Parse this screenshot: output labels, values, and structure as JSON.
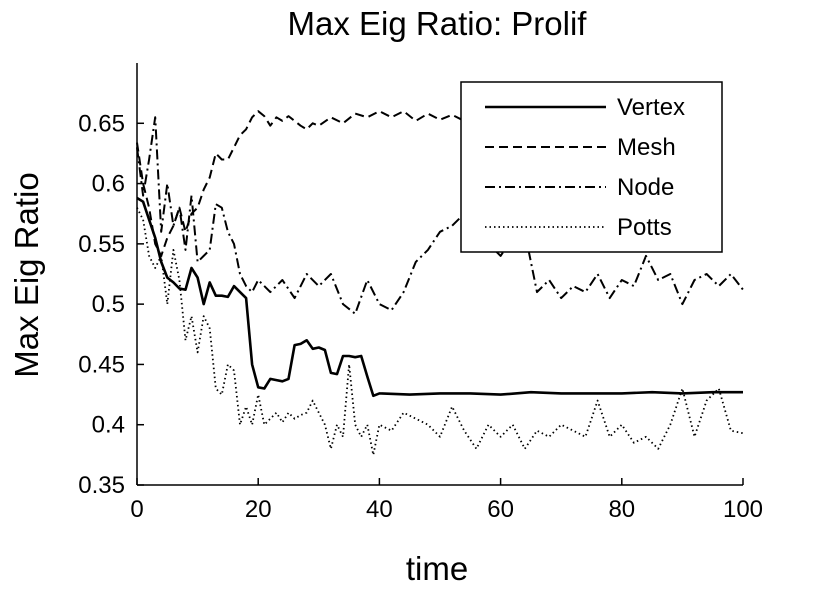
{
  "chart_data": {
    "type": "line",
    "title": "Max Eig Ratio: Prolif",
    "xlabel": "time",
    "ylabel": "Max Eig Ratio",
    "xlim": [
      0,
      100
    ],
    "ylim": [
      0.35,
      0.7
    ],
    "xticks": [
      0,
      20,
      40,
      60,
      80,
      100
    ],
    "xtick_labels": [
      "0",
      "20",
      "40",
      "60",
      "80",
      "100"
    ],
    "yticks": [
      0.35,
      0.4,
      0.45,
      0.5,
      0.55,
      0.6,
      0.65
    ],
    "ytick_labels": [
      "0.35",
      "0.4",
      "0.45",
      "0.5",
      "0.55",
      "0.6",
      "0.65"
    ],
    "grid": false,
    "legend_position": "top-right",
    "series": [
      {
        "name": "Vertex",
        "style": "solid",
        "x": [
          0,
          1,
          2,
          3,
          4,
          5,
          6,
          7,
          8,
          9,
          10,
          11,
          12,
          13,
          14,
          15,
          16,
          17,
          18,
          19,
          20,
          21,
          22,
          23,
          24,
          25,
          26,
          27,
          28,
          29,
          30,
          31,
          32,
          33,
          34,
          35,
          36,
          37,
          38,
          39,
          40,
          45,
          50,
          55,
          60,
          65,
          70,
          75,
          80,
          85,
          90,
          95,
          100
        ],
        "y": [
          0.588,
          0.585,
          0.57,
          0.555,
          0.535,
          0.522,
          0.518,
          0.513,
          0.512,
          0.53,
          0.522,
          0.5,
          0.518,
          0.507,
          0.507,
          0.506,
          0.515,
          0.51,
          0.505,
          0.45,
          0.431,
          0.43,
          0.438,
          0.437,
          0.436,
          0.438,
          0.466,
          0.467,
          0.47,
          0.463,
          0.464,
          0.462,
          0.443,
          0.442,
          0.457,
          0.457,
          0.456,
          0.457,
          0.44,
          0.424,
          0.426,
          0.425,
          0.426,
          0.426,
          0.425,
          0.427,
          0.426,
          0.426,
          0.426,
          0.427,
          0.426,
          0.427,
          0.427
        ]
      },
      {
        "name": "Mesh",
        "style": "dashed",
        "x": [
          0,
          1,
          2,
          3,
          4,
          5,
          6,
          7,
          8,
          9,
          10,
          11,
          12,
          13,
          14,
          15,
          16,
          17,
          18,
          19,
          20,
          21,
          22,
          23,
          24,
          25,
          26,
          27,
          28,
          29,
          30,
          32,
          34,
          36,
          38,
          40,
          42,
          44,
          46,
          48,
          50,
          52,
          54
        ],
        "y": [
          0.634,
          0.6,
          0.58,
          0.55,
          0.54,
          0.555,
          0.565,
          0.58,
          0.56,
          0.575,
          0.58,
          0.595,
          0.605,
          0.625,
          0.62,
          0.62,
          0.63,
          0.64,
          0.645,
          0.655,
          0.66,
          0.656,
          0.648,
          0.655,
          0.652,
          0.656,
          0.652,
          0.648,
          0.645,
          0.65,
          0.648,
          0.655,
          0.65,
          0.658,
          0.655,
          0.66,
          0.655,
          0.66,
          0.652,
          0.658,
          0.653,
          0.657,
          0.652
        ]
      },
      {
        "name": "Node",
        "style": "dashdot",
        "x": [
          0,
          1,
          2,
          3,
          4,
          5,
          6,
          7,
          8,
          9,
          10,
          11,
          12,
          13,
          14,
          15,
          16,
          17,
          18,
          19,
          20,
          22,
          24,
          26,
          28,
          30,
          32,
          34,
          36,
          38,
          40,
          42,
          44,
          46,
          48,
          50,
          52,
          54,
          56,
          58,
          60,
          62,
          64,
          66,
          68,
          70,
          72,
          74,
          76,
          78,
          80,
          82,
          84,
          86,
          88,
          90,
          92,
          94,
          96,
          98,
          100
        ],
        "y": [
          0.63,
          0.59,
          0.62,
          0.655,
          0.56,
          0.6,
          0.565,
          0.58,
          0.545,
          0.59,
          0.535,
          0.54,
          0.545,
          0.583,
          0.58,
          0.56,
          0.55,
          0.525,
          0.515,
          0.51,
          0.52,
          0.51,
          0.52,
          0.505,
          0.525,
          0.515,
          0.525,
          0.5,
          0.492,
          0.52,
          0.5,
          0.495,
          0.51,
          0.535,
          0.545,
          0.56,
          0.565,
          0.575,
          0.58,
          0.55,
          0.54,
          0.555,
          0.56,
          0.51,
          0.52,
          0.505,
          0.515,
          0.51,
          0.525,
          0.505,
          0.52,
          0.515,
          0.54,
          0.52,
          0.525,
          0.5,
          0.52,
          0.525,
          0.515,
          0.525,
          0.512
        ]
      },
      {
        "name": "Potts",
        "style": "dotted",
        "x": [
          0,
          1,
          2,
          3,
          4,
          5,
          6,
          7,
          8,
          9,
          10,
          11,
          12,
          13,
          14,
          15,
          16,
          17,
          18,
          19,
          20,
          21,
          22,
          23,
          24,
          25,
          26,
          27,
          28,
          29,
          30,
          31,
          32,
          33,
          34,
          35,
          36,
          37,
          38,
          39,
          40,
          42,
          44,
          46,
          48,
          50,
          52,
          54,
          56,
          58,
          60,
          62,
          64,
          66,
          68,
          70,
          72,
          74,
          76,
          78,
          80,
          82,
          84,
          86,
          88,
          90,
          92,
          94,
          96,
          98,
          100
        ],
        "y": [
          0.58,
          0.57,
          0.54,
          0.53,
          0.54,
          0.5,
          0.545,
          0.52,
          0.47,
          0.49,
          0.46,
          0.49,
          0.48,
          0.43,
          0.425,
          0.45,
          0.445,
          0.4,
          0.415,
          0.4,
          0.425,
          0.4,
          0.405,
          0.41,
          0.402,
          0.41,
          0.405,
          0.408,
          0.41,
          0.42,
          0.41,
          0.4,
          0.38,
          0.4,
          0.39,
          0.45,
          0.4,
          0.39,
          0.4,
          0.375,
          0.4,
          0.395,
          0.41,
          0.405,
          0.4,
          0.39,
          0.415,
          0.395,
          0.38,
          0.4,
          0.39,
          0.4,
          0.38,
          0.395,
          0.39,
          0.4,
          0.395,
          0.39,
          0.42,
          0.39,
          0.4,
          0.385,
          0.39,
          0.38,
          0.4,
          0.43,
          0.39,
          0.42,
          0.43,
          0.395,
          0.393
        ]
      }
    ]
  }
}
